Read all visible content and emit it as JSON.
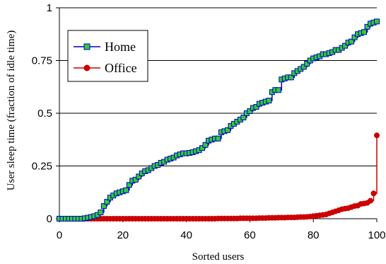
{
  "chart_data": {
    "type": "line",
    "title": "",
    "xlabel": "Sorted users",
    "ylabel": "User sleep time (fraction of idle time)",
    "xlim": [
      0,
      100
    ],
    "ylim": [
      0,
      1
    ],
    "x_ticks": [
      "0",
      "20",
      "40",
      "60",
      "80",
      "100"
    ],
    "y_ticks": [
      "0",
      "0.25",
      "0.5",
      "0.75",
      "1"
    ],
    "grid": "horizontal",
    "legend_position": "top-left",
    "x": [
      0,
      1,
      2,
      3,
      4,
      5,
      6,
      7,
      8,
      9,
      10,
      11,
      12,
      13,
      14,
      15,
      16,
      17,
      18,
      19,
      20,
      21,
      22,
      23,
      24,
      25,
      26,
      27,
      28,
      29,
      30,
      31,
      32,
      33,
      34,
      35,
      36,
      37,
      38,
      39,
      40,
      41,
      42,
      43,
      44,
      45,
      46,
      47,
      48,
      49,
      50,
      51,
      52,
      53,
      54,
      55,
      56,
      57,
      58,
      59,
      60,
      61,
      62,
      63,
      64,
      65,
      66,
      67,
      68,
      69,
      70,
      71,
      72,
      73,
      74,
      75,
      76,
      77,
      78,
      79,
      80,
      81,
      82,
      83,
      84,
      85,
      86,
      87,
      88,
      89,
      90,
      91,
      92,
      93,
      94,
      95,
      96,
      97,
      98,
      99,
      100
    ],
    "series": [
      {
        "name": "Home",
        "color": "#0000cc",
        "marker_fill": "#33cc33",
        "marker": "square",
        "values": [
          0,
          0,
          0,
          0,
          0,
          0,
          0,
          0,
          0.002,
          0.005,
          0.008,
          0.012,
          0.018,
          0.03,
          0.06,
          0.08,
          0.1,
          0.11,
          0.12,
          0.125,
          0.13,
          0.135,
          0.16,
          0.18,
          0.185,
          0.2,
          0.215,
          0.225,
          0.23,
          0.24,
          0.25,
          0.255,
          0.265,
          0.27,
          0.28,
          0.285,
          0.29,
          0.3,
          0.305,
          0.31,
          0.31,
          0.312,
          0.315,
          0.32,
          0.325,
          0.335,
          0.35,
          0.37,
          0.375,
          0.38,
          0.38,
          0.41,
          0.415,
          0.42,
          0.44,
          0.45,
          0.46,
          0.47,
          0.48,
          0.5,
          0.51,
          0.525,
          0.53,
          0.545,
          0.55,
          0.555,
          0.56,
          0.6,
          0.61,
          0.61,
          0.66,
          0.665,
          0.67,
          0.67,
          0.69,
          0.7,
          0.71,
          0.72,
          0.735,
          0.75,
          0.76,
          0.765,
          0.77,
          0.78,
          0.78,
          0.785,
          0.79,
          0.8,
          0.8,
          0.81,
          0.82,
          0.835,
          0.84,
          0.86,
          0.875,
          0.88,
          0.885,
          0.91,
          0.925,
          0.93,
          0.935
        ]
      },
      {
        "name": "Office",
        "color": "#cc0000",
        "marker_fill": "#cc0000",
        "marker": "circle",
        "values": [
          0,
          0,
          0,
          0,
          0,
          0,
          0,
          0,
          0,
          0,
          0,
          0,
          0,
          0,
          0,
          0,
          0,
          0,
          0,
          0,
          0,
          0,
          0,
          0,
          0,
          0,
          0,
          0,
          0,
          0,
          0,
          0,
          0,
          0,
          0,
          0,
          0,
          0,
          0,
          0,
          0,
          0,
          0,
          0,
          0,
          0,
          0,
          0,
          0,
          0,
          0.001,
          0.001,
          0.001,
          0.001,
          0.001,
          0.001,
          0.001,
          0.002,
          0.002,
          0.002,
          0.002,
          0.002,
          0.002,
          0.003,
          0.003,
          0.003,
          0.004,
          0.004,
          0.004,
          0.005,
          0.005,
          0.005,
          0.006,
          0.006,
          0.006,
          0.007,
          0.008,
          0.008,
          0.009,
          0.01,
          0.012,
          0.014,
          0.016,
          0.018,
          0.02,
          0.025,
          0.03,
          0.035,
          0.04,
          0.045,
          0.048,
          0.05,
          0.055,
          0.06,
          0.062,
          0.07,
          0.072,
          0.075,
          0.085,
          0.12,
          0.395
        ]
      }
    ]
  }
}
